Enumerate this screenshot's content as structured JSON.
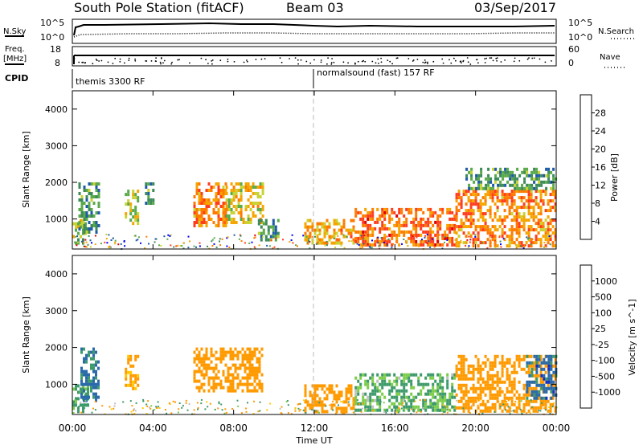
{
  "header": {
    "station": "South Pole Station (fitACF)",
    "beam": "Beam 03",
    "date": "03/Sep/2017"
  },
  "top_panels": {
    "nsky_label": "N.Sky",
    "nsky_ticks": [
      "10^5",
      "10^0"
    ],
    "nsearch_label": "N.Search",
    "freq_label": "Freq.",
    "freq_unit": "[MHz]",
    "freq_ticks": [
      "18",
      "8"
    ],
    "nave_label": "Nave",
    "nave_ticks": [
      "60",
      "0"
    ],
    "cpid_label": "CPID",
    "cpid_segments": [
      "themis 3300 RF",
      "normalsound (fast) 157 RF"
    ]
  },
  "colors": {
    "power": [
      "#0000ff",
      "#1f5aa8",
      "#3d8a5a",
      "#5aaa4a",
      "#c8d232",
      "#f5a500",
      "#ff7a00",
      "#ff3c1e",
      "#dc0000"
    ],
    "velocity": [
      "#e00000",
      "#ff5a00",
      "#ff9a00",
      "#ffc800",
      "#c0c0c0",
      "#7ccc4a",
      "#3d9a6a",
      "#2a6aaa",
      "#1030c8"
    ]
  },
  "chart_data": [
    {
      "type": "heatmap",
      "name": "Power",
      "ylabel": "Slant Range [km]",
      "ylim": [
        180,
        4500
      ],
      "yticks": [
        "4000",
        "3000",
        "2000",
        "1000"
      ],
      "xlim_hours": [
        0,
        24
      ],
      "colorbar_label": "Power [dB]",
      "colorbar_ticks": [
        "28",
        "24",
        "20",
        "16",
        "12",
        "8",
        "4"
      ],
      "echo_regions": [
        {
          "t0": 0.0,
          "t1": 0.6,
          "r0": 300,
          "r1": 1000,
          "value": 14
        },
        {
          "t0": 0.3,
          "t1": 1.3,
          "r0": 600,
          "r1": 2000,
          "value": 10
        },
        {
          "t0": 2.6,
          "t1": 3.2,
          "r0": 900,
          "r1": 1800,
          "value": 16
        },
        {
          "t0": 3.6,
          "t1": 4.0,
          "r0": 1400,
          "r1": 2000,
          "value": 10
        },
        {
          "t0": 6.0,
          "t1": 7.6,
          "r0": 800,
          "r1": 2000,
          "value": 22
        },
        {
          "t0": 7.6,
          "t1": 9.4,
          "r0": 900,
          "r1": 2000,
          "value": 18
        },
        {
          "t0": 9.2,
          "t1": 10.2,
          "r0": 400,
          "r1": 1000,
          "value": 10
        },
        {
          "t0": 11.5,
          "t1": 14.0,
          "r0": 300,
          "r1": 1000,
          "value": 20
        },
        {
          "t0": 14.0,
          "t1": 19.0,
          "r0": 300,
          "r1": 1300,
          "value": 24
        },
        {
          "t0": 19.0,
          "t1": 24.0,
          "r0": 300,
          "r1": 1800,
          "value": 22
        },
        {
          "t0": 19.5,
          "t1": 24.0,
          "r0": 1800,
          "r1": 2400,
          "value": 10
        }
      ]
    },
    {
      "type": "heatmap",
      "name": "Velocity",
      "ylabel": "Slant Range [km]",
      "ylim": [
        180,
        4500
      ],
      "yticks": [
        "4000",
        "3000",
        "2000",
        "1000"
      ],
      "xlim_hours": [
        0,
        24
      ],
      "colorbar_label": "Velocity [m s^-1]",
      "colorbar_ticks": [
        "1000",
        "500",
        "100",
        "25",
        "-25",
        "-100",
        "-500",
        "-1000"
      ],
      "echo_regions": [
        {
          "t0": 0.0,
          "t1": 0.8,
          "r0": 300,
          "r1": 1000,
          "value": 150
        },
        {
          "t0": 0.4,
          "t1": 1.3,
          "r0": 600,
          "r1": 2000,
          "value": 600
        },
        {
          "t0": 2.6,
          "t1": 3.2,
          "r0": 900,
          "r1": 1800,
          "value": -150
        },
        {
          "t0": 6.0,
          "t1": 9.4,
          "r0": 800,
          "r1": 2000,
          "value": -300
        },
        {
          "t0": 11.5,
          "t1": 14.0,
          "r0": 300,
          "r1": 1000,
          "value": -200
        },
        {
          "t0": 14.0,
          "t1": 19.0,
          "r0": 300,
          "r1": 1300,
          "value": 120
        },
        {
          "t0": 19.0,
          "t1": 24.0,
          "r0": 300,
          "r1": 1800,
          "value": -250
        },
        {
          "t0": 22.5,
          "t1": 24.0,
          "r0": 600,
          "r1": 1800,
          "value": 700
        }
      ]
    }
  ],
  "xaxis": {
    "label": "Time UT",
    "ticks": [
      "00:00",
      "04:00",
      "08:00",
      "12:00",
      "16:00",
      "20:00",
      "00:00"
    ]
  }
}
